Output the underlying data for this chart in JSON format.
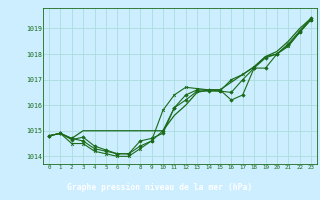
{
  "title": "",
  "xlabel": "Graphe pression niveau de la mer (hPa)",
  "ylabel": "",
  "bg_color": "#cceeff",
  "line_color": "#1a6b1a",
  "grid_color": "#aadddd",
  "xlabel_bg": "#2a7a2a",
  "xlabel_fg": "#ffffff",
  "xlim": [
    -0.5,
    23.5
  ],
  "ylim": [
    1013.7,
    1019.8
  ],
  "yticks": [
    1014,
    1015,
    1016,
    1017,
    1018,
    1019
  ],
  "xticks": [
    0,
    1,
    2,
    3,
    4,
    5,
    6,
    7,
    8,
    9,
    10,
    11,
    12,
    13,
    14,
    15,
    16,
    17,
    18,
    19,
    20,
    21,
    22,
    23
  ],
  "series1": [
    1014.8,
    1014.9,
    1014.7,
    1014.6,
    1014.3,
    1014.2,
    1014.1,
    1014.1,
    1014.6,
    1014.7,
    1014.9,
    1015.9,
    1016.4,
    1016.6,
    1016.6,
    1016.6,
    1016.2,
    1016.4,
    1017.45,
    1017.45,
    1018.0,
    1018.4,
    1018.9,
    1019.4
  ],
  "series2": [
    1014.8,
    1014.9,
    1014.7,
    1015.0,
    1015.0,
    1015.0,
    1015.0,
    1015.0,
    1015.0,
    1015.0,
    1015.0,
    1015.6,
    1016.0,
    1016.5,
    1016.6,
    1016.6,
    1016.9,
    1017.2,
    1017.5,
    1017.9,
    1018.1,
    1018.5,
    1019.0,
    1019.4
  ],
  "series3": [
    1014.8,
    1014.9,
    1014.65,
    1014.75,
    1014.4,
    1014.25,
    1014.1,
    1014.1,
    1014.4,
    1014.6,
    1015.0,
    1015.9,
    1016.2,
    1016.55,
    1016.55,
    1016.55,
    1016.5,
    1017.0,
    1017.45,
    1017.85,
    1018.0,
    1018.35,
    1018.85,
    1019.35
  ],
  "series4": [
    1014.8,
    1014.9,
    1014.5,
    1014.5,
    1014.2,
    1014.1,
    1014.0,
    1014.0,
    1014.3,
    1014.6,
    1015.8,
    1016.4,
    1016.7,
    1016.65,
    1016.6,
    1016.55,
    1017.0,
    1017.2,
    1017.5,
    1017.9,
    1018.0,
    1018.3,
    1018.85,
    1019.35
  ]
}
